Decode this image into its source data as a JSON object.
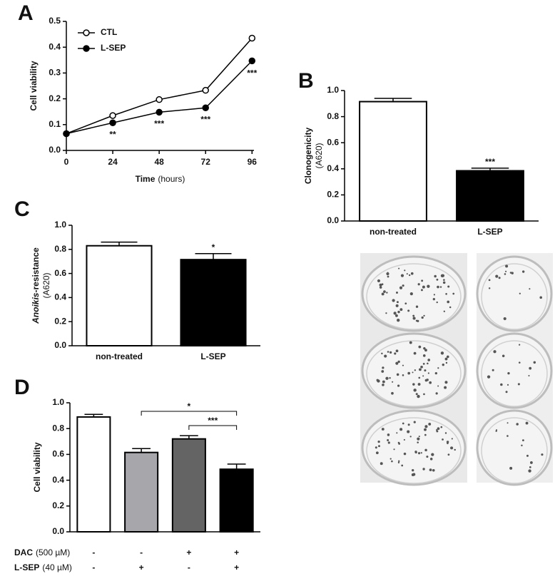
{
  "chart_data": [
    {
      "type": "line",
      "panel": "A",
      "ylabel": "Cell viability",
      "xlabel": "Time",
      "xlabel_unit": "(hours)",
      "x": [
        0,
        24,
        48,
        72,
        96
      ],
      "xlim": [
        0,
        97
      ],
      "xticks": [
        0,
        24,
        48,
        72,
        96
      ],
      "ylim": [
        0,
        0.5
      ],
      "yticks": [
        {
          "value": 0,
          "label": "0.0"
        },
        0.1,
        0.2,
        0.3,
        0.4,
        0.5
      ],
      "legend": "top-left",
      "series": [
        {
          "name": "CTL",
          "color": "#ffffff",
          "values": [
            0.065,
            0.135,
            0.197,
            0.233,
            0.435
          ]
        },
        {
          "name": "L-SEP",
          "color": "#000000",
          "values": [
            0.065,
            0.107,
            0.148,
            0.165,
            0.347
          ],
          "errors": [
            0,
            0,
            0,
            0,
            0.008
          ]
        }
      ],
      "annotations": [
        {
          "text": "**",
          "x": 24
        },
        {
          "text": "***",
          "x": 48
        },
        {
          "text": "***",
          "x": 72
        },
        {
          "text": "***",
          "x": 96
        }
      ]
    },
    {
      "type": "bar",
      "panel": "B",
      "ylabel": "Clonogenicity",
      "ylabel_unit": "(A620)",
      "categories": [
        "non-treated",
        "L-SEP"
      ],
      "values": [
        0.915,
        0.385
      ],
      "errors": [
        0.025,
        0.02
      ],
      "colors": [
        "#ffffff",
        "#000000"
      ],
      "ylim": [
        0,
        1.0
      ],
      "yticks": [
        {
          "value": 0,
          "label": "0.0"
        },
        0.2,
        0.4,
        0.6,
        0.8,
        {
          "value": 1,
          "label": "1.0"
        }
      ],
      "annotations": [
        {
          "text": "***",
          "index": 1
        }
      ]
    },
    {
      "type": "bar",
      "panel": "C",
      "ylabel_parts": [
        {
          "text": "Anoikis",
          "italic": true
        },
        {
          "text": "-resistance"
        }
      ],
      "ylabel_unit": "(A620)",
      "categories": [
        "non-treated",
        "L-SEP"
      ],
      "values": [
        0.83,
        0.715
      ],
      "errors": [
        0.03,
        0.05
      ],
      "colors": [
        "#ffffff",
        "#000000"
      ],
      "ylim": [
        0,
        1.0
      ],
      "yticks": [
        {
          "value": 0,
          "label": "0.0"
        },
        0.2,
        0.4,
        0.6,
        0.8,
        {
          "value": 1,
          "label": "1.0"
        }
      ],
      "annotations": [
        {
          "text": "*",
          "index": 1
        }
      ]
    },
    {
      "type": "bar",
      "panel": "D",
      "ylabel": "Cell viability",
      "values": [
        0.89,
        0.615,
        0.72,
        0.485
      ],
      "errors": [
        0.02,
        0.03,
        0.025,
        0.04
      ],
      "colors": [
        "#ffffff",
        "#a6a6ab",
        "#646464",
        "#000000"
      ],
      "ylim": [
        0,
        1.0
      ],
      "yticks": [
        {
          "value": 0,
          "label": "0.0"
        },
        0.2,
        0.4,
        0.6,
        0.8,
        {
          "value": 1,
          "label": "1.0"
        }
      ],
      "conditions": [
        {
          "name": "DAC",
          "unit": "(500 µM)",
          "levels": [
            "-",
            "-",
            "+",
            "+"
          ]
        },
        {
          "name": "L-SEP",
          "unit": "(40 µM)",
          "levels": [
            "-",
            "+",
            "-",
            "+"
          ]
        }
      ],
      "brackets": [
        {
          "text": "*",
          "from": 1,
          "to": 3
        },
        {
          "text": "***",
          "from": 2,
          "to": 3
        }
      ]
    }
  ]
}
